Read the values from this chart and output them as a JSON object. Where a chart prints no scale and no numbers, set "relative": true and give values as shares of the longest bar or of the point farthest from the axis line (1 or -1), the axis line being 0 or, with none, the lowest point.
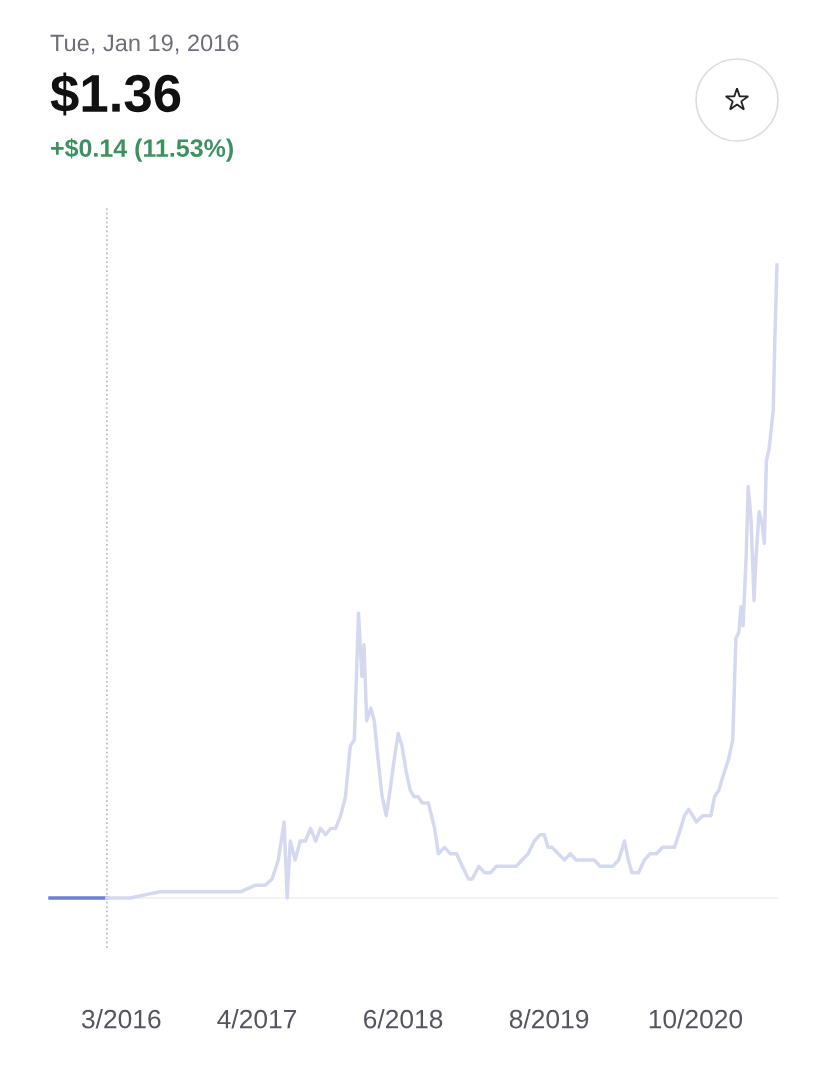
{
  "chart_data": {
    "type": "line",
    "subtitle": "Tue, Jan 19, 2016",
    "title": "$1.36",
    "annotations": [
      "+$0.14 (11.53%)"
    ],
    "relative": true,
    "tick_labels": "x",
    "grid": false,
    "line_style": "solid",
    "marker": "none",
    "xlim": [
      "2015-08-06",
      "2021-05-27"
    ],
    "xticks": [
      {
        "value": "2016-03-01",
        "label": "3/2016"
      },
      {
        "value": "2017-04-01",
        "label": "4/2017"
      },
      {
        "value": "2018-06-01",
        "label": "6/2018"
      },
      {
        "value": "2019-08-01",
        "label": "8/2019"
      },
      {
        "value": "2020-10-01",
        "label": "10/2020"
      }
    ],
    "ref_lines": [
      {
        "axis": "x",
        "value": "2016-01-19",
        "label": null,
        "color": "#b8b8b8",
        "line_style": "dotted"
      }
    ],
    "series": [
      {
        "color": "#6b7fd7",
        "x": [
          "2015-08-06",
          "2016-01-19"
        ],
        "values": [
          0.0,
          0.0
        ]
      },
      {
        "color": "#d5d9f0",
        "x": [
          "2016-01-19",
          "2016-03-27",
          "2016-06-23",
          "2016-10-17",
          "2017-02-13",
          "2017-03-26",
          "2017-04-25",
          "2017-05-15",
          "2017-06-02",
          "2017-06-19",
          "2017-06-28",
          "2017-07-07",
          "2017-07-21",
          "2017-08-05",
          "2017-08-20",
          "2017-09-04",
          "2017-09-19",
          "2017-10-03",
          "2017-10-18",
          "2017-11-02",
          "2017-11-16",
          "2017-12-01",
          "2017-12-15",
          "2017-12-29",
          "2018-01-10",
          "2018-01-22",
          "2018-02-01",
          "2018-02-07",
          "2018-02-15",
          "2018-02-27",
          "2018-03-09",
          "2018-03-20",
          "2018-04-01",
          "2018-04-13",
          "2018-04-24",
          "2018-05-09",
          "2018-05-18",
          "2018-05-29",
          "2018-06-10",
          "2018-06-22",
          "2018-07-03",
          "2018-07-15",
          "2018-07-27",
          "2018-08-14",
          "2018-09-01",
          "2018-09-12",
          "2018-09-30",
          "2018-10-17",
          "2018-11-04",
          "2018-11-21",
          "2018-12-09",
          "2018-12-20",
          "2019-01-08",
          "2019-01-25",
          "2019-02-12",
          "2019-02-28",
          "2019-03-17",
          "2019-04-10",
          "2019-04-27",
          "2019-05-14",
          "2019-06-01",
          "2019-06-19",
          "2019-07-06",
          "2019-07-18",
          "2019-07-29",
          "2019-08-10",
          "2019-08-28",
          "2019-09-15",
          "2019-10-02",
          "2019-10-19",
          "2019-11-06",
          "2019-11-24",
          "2019-12-11",
          "2019-12-28",
          "2020-01-16",
          "2020-02-03",
          "2020-02-20",
          "2020-03-08",
          "2020-03-19",
          "2020-03-30",
          "2020-04-18",
          "2020-05-05",
          "2020-05-22",
          "2020-06-09",
          "2020-06-27",
          "2020-07-14",
          "2020-08-01",
          "2020-08-19",
          "2020-08-30",
          "2020-09-11",
          "2020-09-23",
          "2020-10-04",
          "2020-10-22",
          "2020-11-03",
          "2020-11-15",
          "2020-11-26",
          "2020-12-08",
          "2020-12-19",
          "2021-01-06",
          "2021-01-18",
          "2021-01-27",
          "2021-02-05",
          "2021-02-11",
          "2021-02-17",
          "2021-02-26",
          "2021-03-04",
          "2021-03-12",
          "2021-03-21",
          "2021-03-27",
          "2021-04-05",
          "2021-04-14",
          "2021-04-20",
          "2021-04-26",
          "2021-05-04",
          "2021-05-16",
          "2021-05-21",
          "2021-05-27"
        ],
        "values": [
          0.0,
          0.0,
          0.01,
          0.01,
          0.01,
          0.02,
          0.02,
          0.03,
          0.06,
          0.12,
          0.0,
          0.09,
          0.06,
          0.09,
          0.09,
          0.11,
          0.09,
          0.11,
          0.1,
          0.11,
          0.11,
          0.13,
          0.16,
          0.24,
          0.25,
          0.45,
          0.35,
          0.4,
          0.28,
          0.3,
          0.28,
          0.22,
          0.16,
          0.13,
          0.17,
          0.23,
          0.26,
          0.24,
          0.2,
          0.17,
          0.16,
          0.16,
          0.15,
          0.15,
          0.11,
          0.07,
          0.08,
          0.07,
          0.07,
          0.05,
          0.03,
          0.03,
          0.05,
          0.04,
          0.04,
          0.05,
          0.05,
          0.05,
          0.05,
          0.06,
          0.07,
          0.09,
          0.1,
          0.1,
          0.08,
          0.08,
          0.07,
          0.06,
          0.07,
          0.06,
          0.06,
          0.06,
          0.06,
          0.05,
          0.05,
          0.05,
          0.06,
          0.09,
          0.06,
          0.04,
          0.04,
          0.06,
          0.07,
          0.07,
          0.08,
          0.08,
          0.08,
          0.11,
          0.13,
          0.14,
          0.13,
          0.12,
          0.13,
          0.13,
          0.13,
          0.16,
          0.17,
          0.19,
          0.22,
          0.25,
          0.41,
          0.42,
          0.46,
          0.43,
          0.54,
          0.65,
          0.6,
          0.47,
          0.54,
          0.61,
          0.59,
          0.56,
          0.69,
          0.71,
          0.77,
          0.89,
          1.0
        ]
      }
    ]
  }
}
